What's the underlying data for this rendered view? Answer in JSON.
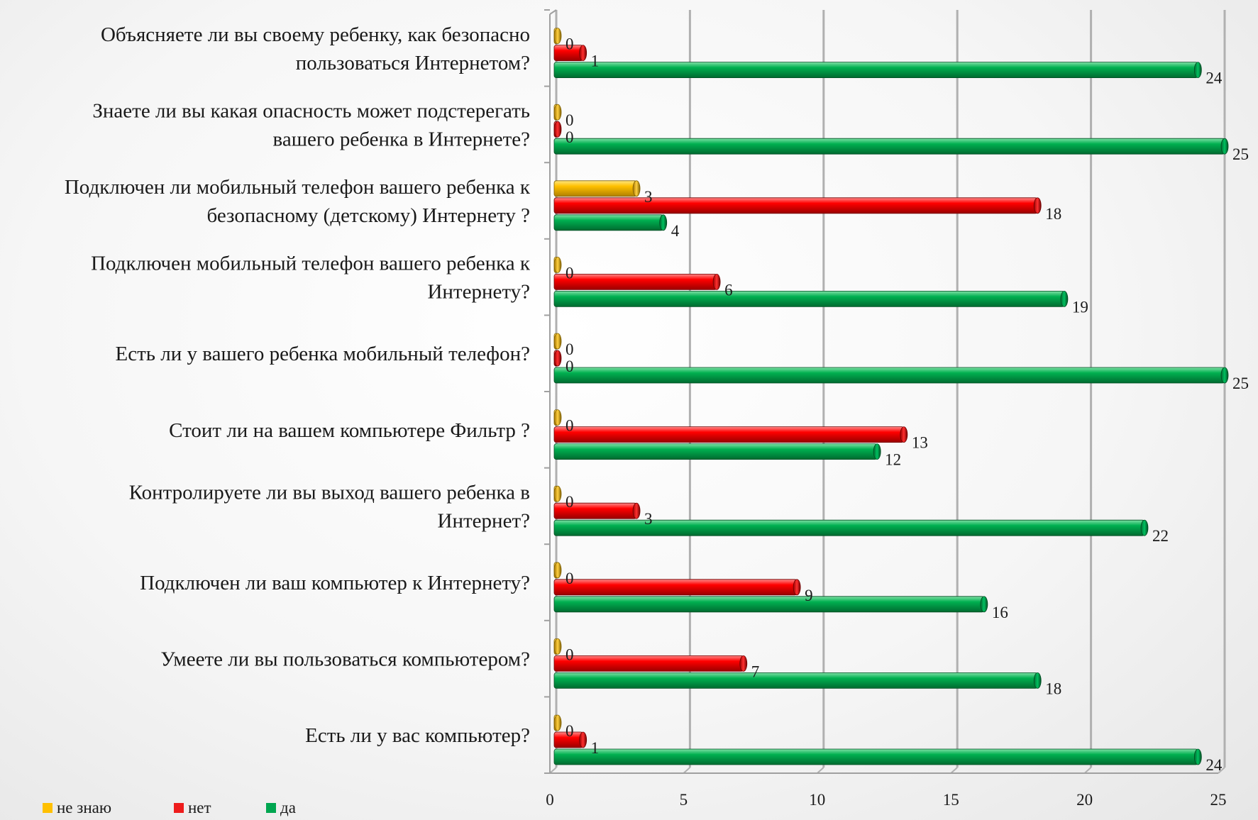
{
  "chart_data": {
    "type": "bar",
    "orientation": "horizontal",
    "categories": [
      "Есть ли у вас компьютер?",
      "Умеете ли вы пользоваться компьютером?",
      "Подключен ли ваш компьютер к Интернету?",
      "Контролируете ли вы выход вашего ребенка в Интернет?",
      "Стоит ли на вашем компьютере Фильтр ?",
      "Есть ли у вашего ребенка мобильный телефон?",
      "Подключен мобильный телефон вашего ребенка к Интернету?",
      "Подключен ли мобильный телефон вашего ребенка к безопасному (детскому) Интернету ?",
      "Знаете ли вы какая опасность может подстерегать вашего ребенка в Интернете?",
      "Объясняете ли вы своему ребенку, как безопасно пользоваться Интернетом?"
    ],
    "category_lines": [
      [
        "Есть ли у вас компьютер?"
      ],
      [
        "Умеете ли вы пользоваться компьютером?"
      ],
      [
        "Подключен ли ваш компьютер к Интернету?"
      ],
      [
        "Контролируете ли вы выход вашего ребенка в",
        "Интернет?"
      ],
      [
        "Стоит ли на вашем компьютере Фильтр ?"
      ],
      [
        "Есть ли у вашего ребенка мобильный телефон?"
      ],
      [
        "Подключен мобильный телефон вашего ребенка к",
        "Интернету?"
      ],
      [
        "Подключен ли мобильный телефон вашего ребенка к",
        "безопасному (детскому) Интернету ?"
      ],
      [
        "Знаете ли вы какая опасность может подстерегать",
        "вашего ребенка в Интернете?"
      ],
      [
        "Объясняете ли вы своему ребенку, как безопасно",
        "пользоваться Интернетом?"
      ]
    ],
    "series": [
      {
        "name": "да",
        "color": "#00a650",
        "values": [
          24,
          18,
          16,
          22,
          12,
          25,
          19,
          4,
          25,
          24
        ]
      },
      {
        "name": "нет",
        "color": "#ee1c1c",
        "values": [
          1,
          7,
          9,
          3,
          13,
          0,
          6,
          18,
          0,
          1
        ]
      },
      {
        "name": "не знаю",
        "color": "#ffc000",
        "values": [
          0,
          0,
          0,
          0,
          0,
          0,
          0,
          3,
          0,
          0
        ]
      }
    ],
    "xlim": [
      0,
      25
    ],
    "xticks": [
      "0",
      "5",
      "10",
      "15",
      "20",
      "25"
    ],
    "grid": true,
    "legend_position": "bottom-left"
  }
}
